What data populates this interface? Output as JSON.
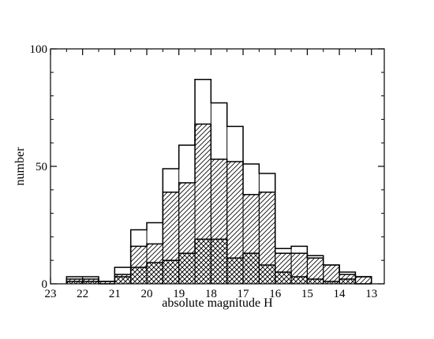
{
  "chart_data": {
    "type": "bar",
    "title": "",
    "xlabel": "absolute magnitude H",
    "ylabel": "number",
    "xlim": [
      23,
      12.6
    ],
    "ylim": [
      0,
      100
    ],
    "x_reversed": true,
    "x_ticks": [
      23,
      22,
      21,
      20,
      19,
      18,
      17,
      16,
      15,
      14,
      13
    ],
    "y_ticks": [
      0,
      50,
      100
    ],
    "grid": false,
    "legend": "none",
    "bin_edges": [
      22.5,
      22.0,
      21.5,
      21.0,
      20.5,
      20.0,
      19.5,
      19.0,
      18.5,
      18.0,
      17.5,
      17.0,
      16.5,
      16.0,
      15.5,
      15.0,
      14.5,
      14.0,
      13.5,
      13.0
    ],
    "series": [
      {
        "fill": "none",
        "values": [
          3,
          3,
          1,
          7,
          23,
          26,
          49,
          59,
          87,
          77,
          67,
          51,
          47,
          15,
          16,
          12,
          8,
          5,
          3
        ]
      },
      {
        "fill": "diagonal-hatch",
        "values": [
          2,
          2,
          1,
          4,
          16,
          17,
          39,
          43,
          68,
          53,
          52,
          38,
          39,
          13,
          13,
          11,
          8,
          4,
          3
        ]
      },
      {
        "fill": "cross-hatch",
        "values": [
          1,
          1,
          0,
          3,
          7,
          9,
          10,
          13,
          19,
          19,
          11,
          13,
          8,
          5,
          3,
          2,
          1,
          2,
          0
        ]
      }
    ],
    "colors": {
      "axis": "#000000",
      "series": "#000000"
    }
  }
}
